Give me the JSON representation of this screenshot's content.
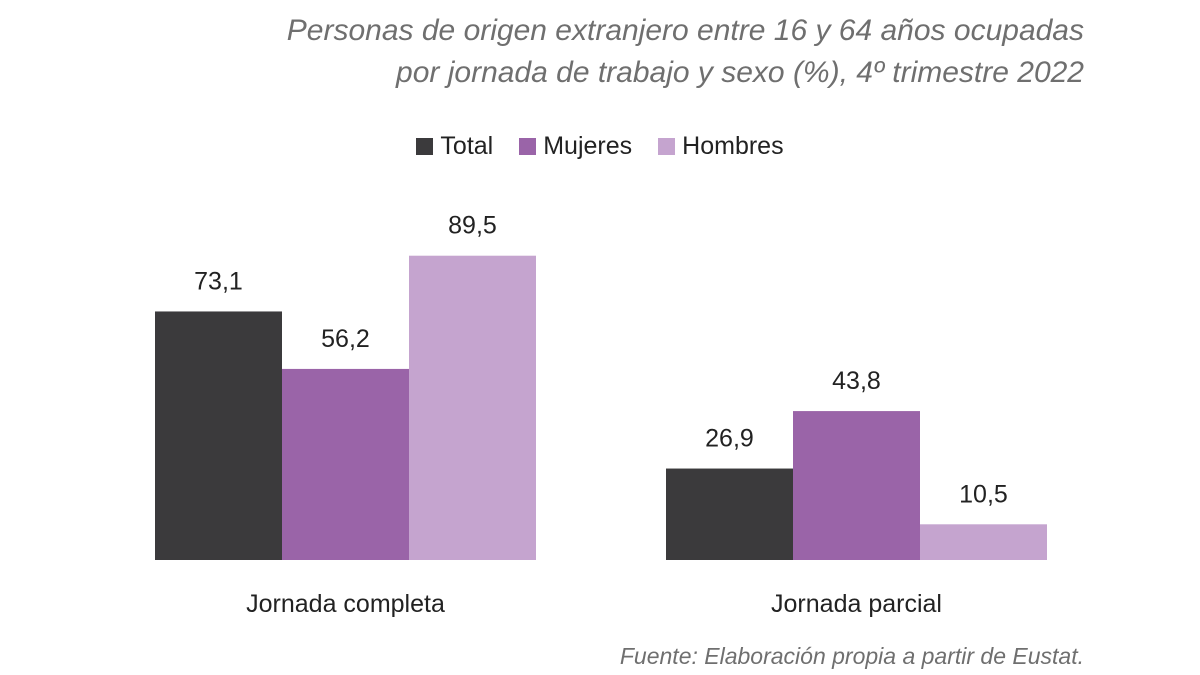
{
  "title_lines": [
    "Personas de origen extranjero entre 16 y 64 años ocupadas",
    "por jornada de trabajo y sexo (%), 4º trimestre 2022"
  ],
  "source": "Fuente:  Elaboración propia a partir de Eustat.",
  "chart_data": {
    "type": "bar",
    "title": "Personas de origen extranjero entre 16 y 64 años ocupadas por jornada de trabajo y sexo (%), 4º trimestre 2022",
    "categories": [
      "Jornada completa",
      "Jornada parcial"
    ],
    "series": [
      {
        "name": "Total",
        "values": [
          73.1,
          26.9
        ],
        "labels": [
          "73,1",
          "26,9"
        ],
        "color": "#3b3a3c"
      },
      {
        "name": "Mujeres",
        "values": [
          56.2,
          43.8
        ],
        "labels": [
          "56,2",
          "43,8"
        ],
        "color": "#9a64a8"
      },
      {
        "name": "Hombres",
        "values": [
          89.5,
          10.5
        ],
        "labels": [
          "89,5",
          "10,5"
        ],
        "color": "#c5a4cf"
      }
    ],
    "ylim": [
      0,
      100
    ],
    "grid": false,
    "legend": "top"
  }
}
